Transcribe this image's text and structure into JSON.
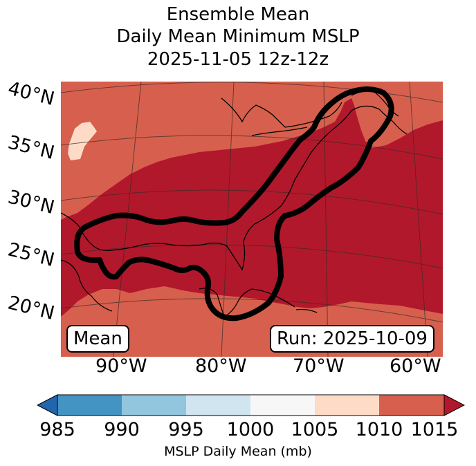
{
  "title": {
    "line1": "Ensemble Mean",
    "line2": "Daily Mean Minimum MSLP",
    "line3": "2025-11-05 12z-12z"
  },
  "map": {
    "lat_labels": [
      "40°N",
      "35°N",
      "30°N",
      "25°N",
      "20°N"
    ],
    "lon_labels": [
      "90°W",
      "80°W",
      "70°W",
      "60°W"
    ],
    "badge_left": "Mean",
    "badge_right": "Run: 2025-10-09",
    "colors": {
      "ocean_base": "#d6604d",
      "low_core": "#b2182b",
      "pale_patch": "#fddbc7",
      "contour": "#000000",
      "coast": "#000000"
    }
  },
  "colorbar": {
    "ticks": [
      "985",
      "990",
      "995",
      "1000",
      "1005",
      "1010",
      "1015"
    ],
    "label": "MSLP Daily Mean (mb)",
    "colors": [
      "#2166ac",
      "#4393c3",
      "#92c5de",
      "#d1e5f0",
      "#f7f7f7",
      "#fddbc7",
      "#d6604d",
      "#b2182b"
    ]
  }
}
